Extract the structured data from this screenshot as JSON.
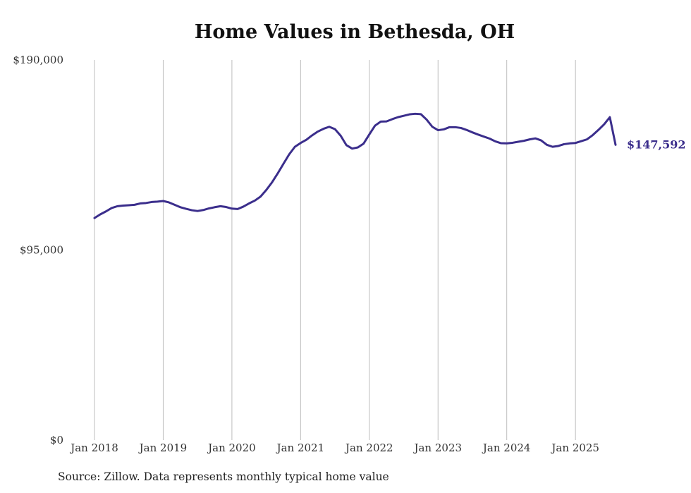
{
  "chart_data": {
    "type": "line",
    "title": "Home Values in Bethesda, OH",
    "source": "Source: Zillow. Data represents monthly typical home value",
    "y_ticks": [
      {
        "value": 190000,
        "label": "$190,000"
      },
      {
        "value": 95000,
        "label": "$95,000"
      },
      {
        "value": 0,
        "label": "$0"
      }
    ],
    "ylim": [
      0,
      190000
    ],
    "x_ticks": [
      {
        "value": "2018-01",
        "label": "Jan 2018"
      },
      {
        "value": "2019-01",
        "label": "Jan 2019"
      },
      {
        "value": "2020-01",
        "label": "Jan 2020"
      },
      {
        "value": "2021-01",
        "label": "Jan 2021"
      },
      {
        "value": "2022-01",
        "label": "Jan 2022"
      },
      {
        "value": "2023-01",
        "label": "Jan 2023"
      },
      {
        "value": "2024-01",
        "label": "Jan 2024"
      },
      {
        "value": "2025-01",
        "label": "Jan 2025"
      }
    ],
    "grid": "vertical",
    "series": [
      {
        "color": "#3b2e8c",
        "end_label": "$147,592",
        "x": [
          "2018-01",
          "2018-02",
          "2018-03",
          "2018-04",
          "2018-05",
          "2018-06",
          "2018-07",
          "2018-08",
          "2018-09",
          "2018-10",
          "2018-11",
          "2018-12",
          "2019-01",
          "2019-02",
          "2019-03",
          "2019-04",
          "2019-05",
          "2019-06",
          "2019-07",
          "2019-08",
          "2019-09",
          "2019-10",
          "2019-11",
          "2019-12",
          "2020-01",
          "2020-02",
          "2020-03",
          "2020-04",
          "2020-05",
          "2020-06",
          "2020-07",
          "2020-08",
          "2020-09",
          "2020-10",
          "2020-11",
          "2020-12",
          "2021-01",
          "2021-02",
          "2021-03",
          "2021-04",
          "2021-05",
          "2021-06",
          "2021-07",
          "2021-08",
          "2021-09",
          "2021-10",
          "2021-11",
          "2021-12",
          "2022-01",
          "2022-02",
          "2022-03",
          "2022-04",
          "2022-05",
          "2022-06",
          "2022-07",
          "2022-08",
          "2022-09",
          "2022-10",
          "2022-11",
          "2022-12",
          "2023-01",
          "2023-02",
          "2023-03",
          "2023-04",
          "2023-05",
          "2023-06",
          "2023-07",
          "2023-08",
          "2023-09",
          "2023-10",
          "2023-11",
          "2023-12",
          "2024-01",
          "2024-02",
          "2024-03",
          "2024-04",
          "2024-05",
          "2024-06",
          "2024-07",
          "2024-08",
          "2024-09",
          "2024-10",
          "2024-11",
          "2024-12",
          "2025-01",
          "2025-02",
          "2025-03",
          "2025-04",
          "2025-05",
          "2025-06",
          "2025-07",
          "2025-08"
        ],
        "values": [
          111000,
          112800,
          114300,
          116000,
          116900,
          117200,
          117400,
          117600,
          118300,
          118500,
          119000,
          119200,
          119500,
          118800,
          117600,
          116400,
          115600,
          114900,
          114500,
          115000,
          115800,
          116400,
          116900,
          116500,
          115700,
          115500,
          116700,
          118300,
          119700,
          121700,
          125000,
          128800,
          133300,
          138100,
          142800,
          146600,
          148500,
          150100,
          152300,
          154200,
          155600,
          156600,
          155400,
          152100,
          147400,
          145700,
          146300,
          148200,
          152800,
          157200,
          159200,
          159300,
          160400,
          161400,
          162100,
          162800,
          163100,
          162900,
          160200,
          156600,
          154900,
          155300,
          156400,
          156400,
          156000,
          155000,
          153800,
          152700,
          151700,
          150700,
          149300,
          148400,
          148300,
          148600,
          149100,
          149600,
          150300,
          150800,
          149800,
          147600,
          146600,
          147000,
          147900,
          148300,
          148500,
          149400,
          150300,
          152400,
          155000,
          157800,
          161400,
          147592
        ]
      }
    ]
  }
}
